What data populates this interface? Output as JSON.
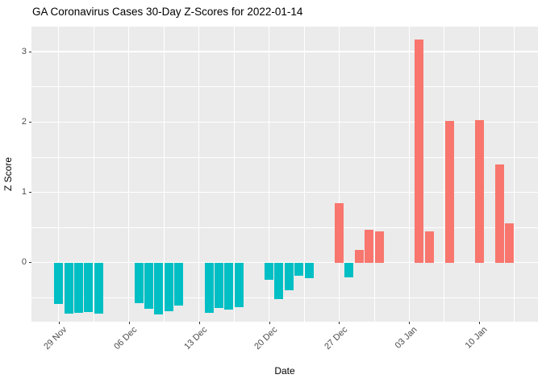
{
  "chart_data": {
    "type": "bar",
    "title": "GA Coronavirus Cases 30-Day Z-Scores for 2022-01-14",
    "xlabel": "Date",
    "ylabel": "Z Score",
    "ylim": [
      -0.84,
      3.36
    ],
    "grid": true,
    "legend_position": "none",
    "panel_bg": "#EBEBEB",
    "grid_color": "#FFFFFF",
    "colors": {
      "positive": "#F8766D",
      "negative": "#00BFC4"
    },
    "y_major_ticks": [
      0,
      1,
      2,
      3
    ],
    "y_minor_ticks": [
      -0.5,
      0.5,
      1.5,
      2.5
    ],
    "x_ticks": [
      {
        "label": "29 Nov",
        "day": 0
      },
      {
        "label": "06 Dec",
        "day": 7
      },
      {
        "label": "13 Dec",
        "day": 14
      },
      {
        "label": "20 Dec",
        "day": 21
      },
      {
        "label": "27 Dec",
        "day": 28
      },
      {
        "label": "03 Jan",
        "day": 35
      },
      {
        "label": "10 Jan",
        "day": 42
      }
    ],
    "points": [
      {
        "date": "29 Nov",
        "day": 0,
        "z": -0.59
      },
      {
        "date": "30 Nov",
        "day": 1,
        "z": -0.73
      },
      {
        "date": "01 Dec",
        "day": 2,
        "z": -0.71
      },
      {
        "date": "02 Dec",
        "day": 3,
        "z": -0.7
      },
      {
        "date": "03 Dec",
        "day": 4,
        "z": -0.73
      },
      {
        "date": "07 Dec",
        "day": 8,
        "z": -0.58
      },
      {
        "date": "08 Dec",
        "day": 9,
        "z": -0.66
      },
      {
        "date": "09 Dec",
        "day": 10,
        "z": -0.74
      },
      {
        "date": "10 Dec",
        "day": 11,
        "z": -0.69
      },
      {
        "date": "11 Dec",
        "day": 12,
        "z": -0.61
      },
      {
        "date": "14 Dec",
        "day": 15,
        "z": -0.71
      },
      {
        "date": "15 Dec",
        "day": 16,
        "z": -0.65
      },
      {
        "date": "16 Dec",
        "day": 17,
        "z": -0.67
      },
      {
        "date": "17 Dec",
        "day": 18,
        "z": -0.63
      },
      {
        "date": "20 Dec",
        "day": 21,
        "z": -0.25
      },
      {
        "date": "21 Dec",
        "day": 22,
        "z": -0.52
      },
      {
        "date": "22 Dec",
        "day": 23,
        "z": -0.39
      },
      {
        "date": "23 Dec",
        "day": 24,
        "z": -0.19
      },
      {
        "date": "24 Dec",
        "day": 25,
        "z": -0.22
      },
      {
        "date": "27 Dec",
        "day": 28,
        "z": 0.84
      },
      {
        "date": "28 Dec",
        "day": 29,
        "z": -0.21
      },
      {
        "date": "29 Dec",
        "day": 30,
        "z": 0.18
      },
      {
        "date": "30 Dec",
        "day": 31,
        "z": 0.47
      },
      {
        "date": "31 Dec",
        "day": 32,
        "z": 0.44
      },
      {
        "date": "04 Jan",
        "day": 36,
        "z": 3.17
      },
      {
        "date": "05 Jan",
        "day": 37,
        "z": 0.44
      },
      {
        "date": "07 Jan",
        "day": 39,
        "z": 2.02
      },
      {
        "date": "10 Jan",
        "day": 42,
        "z": 2.03
      },
      {
        "date": "12 Jan",
        "day": 44,
        "z": 1.39
      },
      {
        "date": "13 Jan",
        "day": 45,
        "z": 0.56
      }
    ]
  }
}
